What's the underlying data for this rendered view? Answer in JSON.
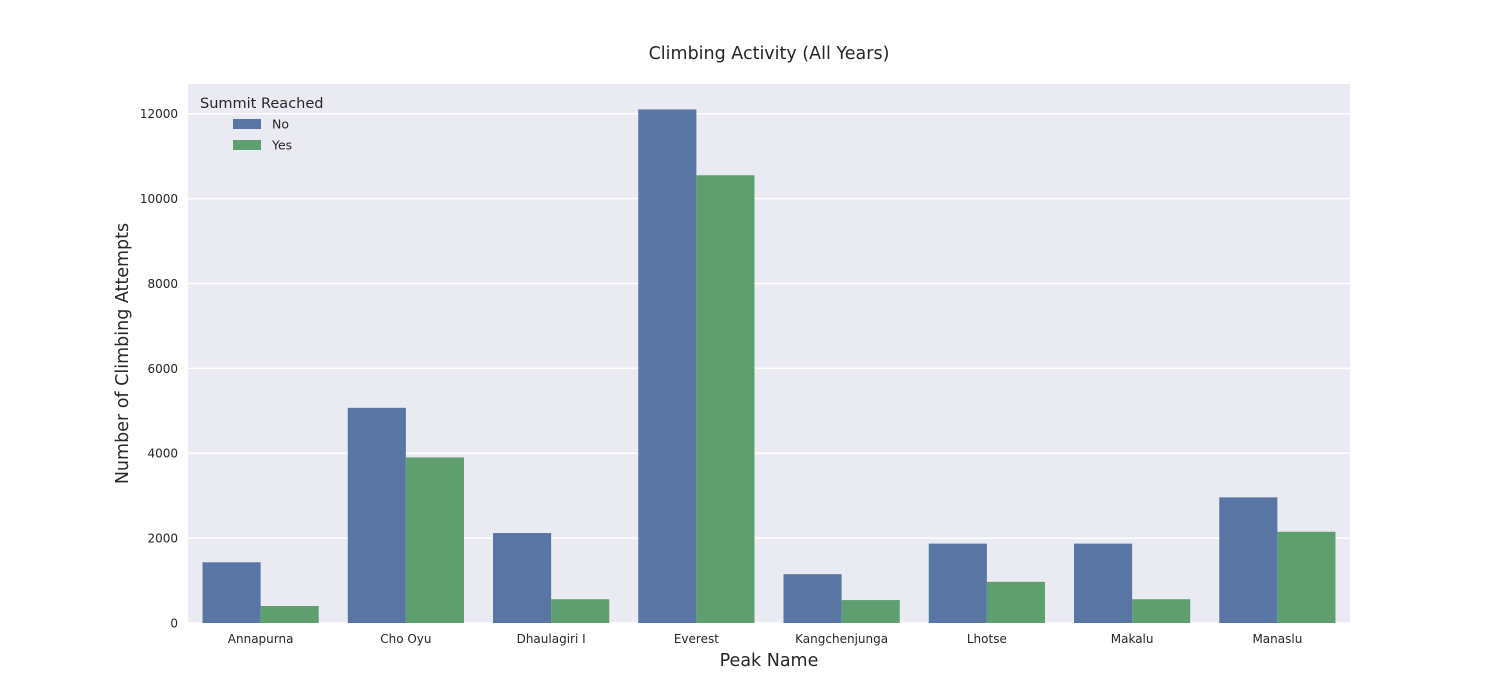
{
  "chart_data": {
    "type": "bar",
    "title": "Climbing Activity (All Years)",
    "xlabel": "Peak Name",
    "ylabel": "Number of Climbing Attempts",
    "categories": [
      "Annapurna",
      "Cho Oyu",
      "Dhaulagiri I",
      "Everest",
      "Kangchenjunga",
      "Lhotse",
      "Makalu",
      "Manaslu"
    ],
    "series": [
      {
        "name": "No",
        "color": "#5875a4",
        "values": [
          1430,
          5070,
          2120,
          12100,
          1150,
          1870,
          1870,
          2960
        ]
      },
      {
        "name": "Yes",
        "color": "#5f9e6e",
        "values": [
          400,
          3900,
          560,
          10550,
          540,
          970,
          560,
          2150
        ]
      }
    ],
    "ylim": [
      0,
      12700
    ],
    "yticks": [
      0,
      2000,
      4000,
      6000,
      8000,
      10000,
      12000
    ],
    "grid": true,
    "legend": {
      "title": "Summit Reached",
      "placement": "top-left"
    },
    "background": "#eaeaf2"
  }
}
